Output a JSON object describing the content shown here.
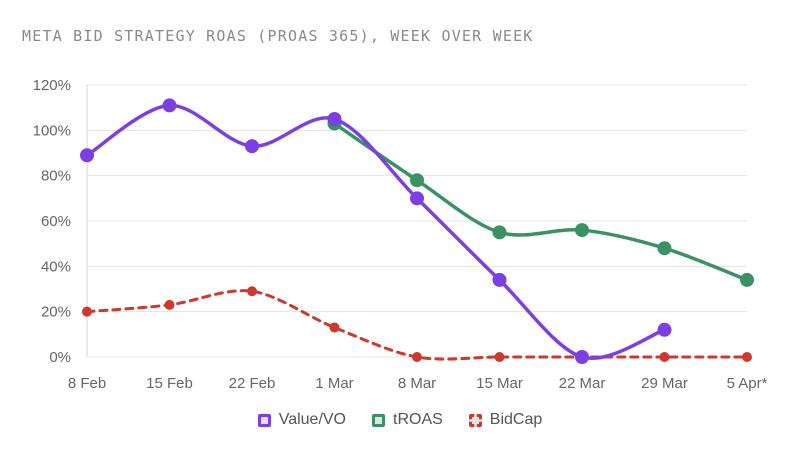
{
  "chart_data": {
    "type": "line",
    "title": "META BID STRATEGY ROAS (PROAS 365), WEEK OVER WEEK",
    "xlabel": "",
    "ylabel": "",
    "categories": [
      "8 Feb",
      "15 Feb",
      "22 Feb",
      "1 Mar",
      "8 Mar",
      "15 Mar",
      "22 Mar",
      "29 Mar",
      "5 Apr*"
    ],
    "y_ticks": [
      "0%",
      "20%",
      "40%",
      "60%",
      "80%",
      "100%",
      "120%"
    ],
    "ylim": [
      0,
      120
    ],
    "grid": true,
    "legend_position": "bottom",
    "series": [
      {
        "name": "Value/VO",
        "color": "#7b3fe4",
        "dashed": false,
        "values": [
          89,
          111,
          93,
          105,
          70,
          34,
          0,
          12,
          null
        ]
      },
      {
        "name": "tROAS",
        "color": "#3a9163",
        "dashed": false,
        "values": [
          null,
          null,
          null,
          103,
          78,
          55,
          56,
          48,
          34
        ]
      },
      {
        "name": "BidCap",
        "color": "#cc3a2f",
        "dashed": true,
        "values": [
          20,
          23,
          29,
          13,
          0,
          0,
          0,
          0,
          0
        ]
      }
    ]
  }
}
